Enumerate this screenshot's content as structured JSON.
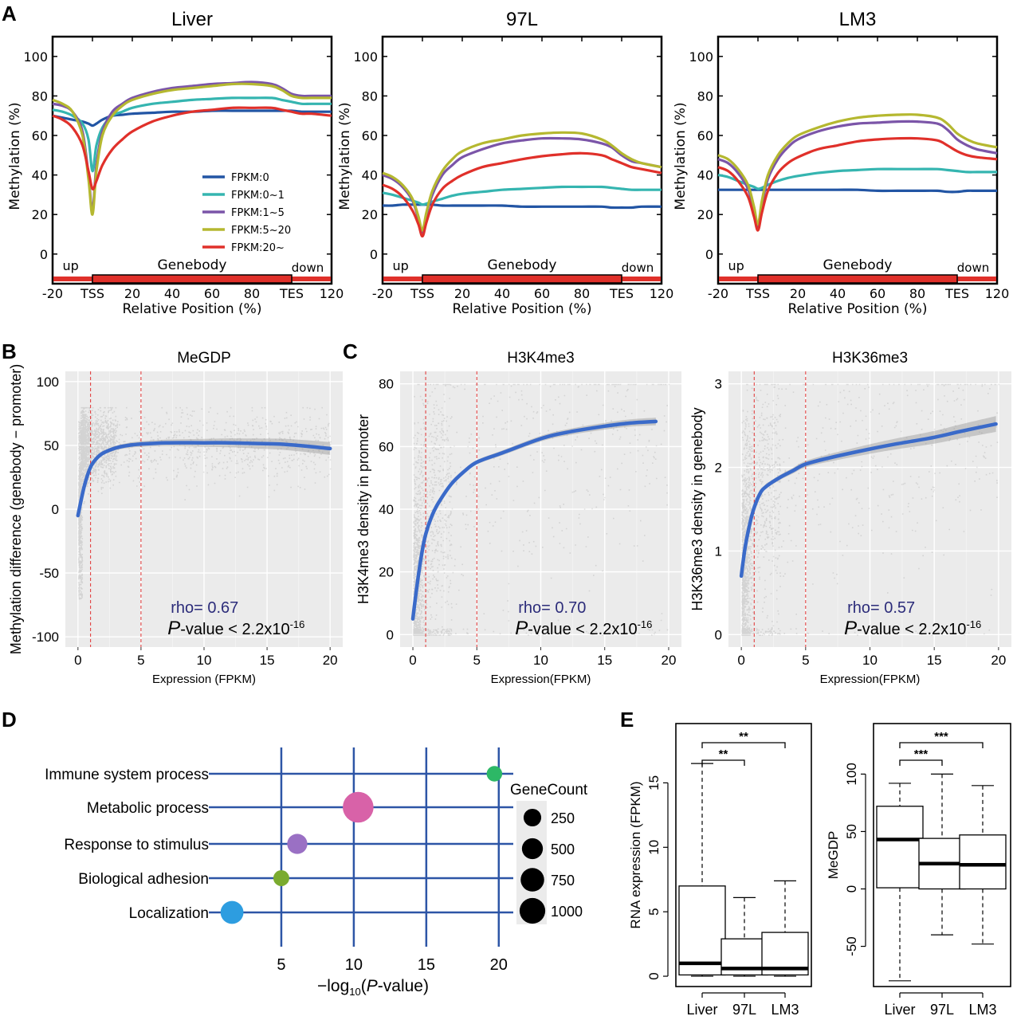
{
  "chart_data": [
    {
      "panel": "A",
      "type": "line",
      "x_ticks": [
        "-20",
        "TSS",
        "20",
        "40",
        "60",
        "80",
        "TES",
        "120"
      ],
      "xlabel": "Relative Position (%)",
      "ylabel": "Methylation (%)",
      "y_ticks": [
        "0",
        "20",
        "40",
        "60",
        "80",
        "100"
      ],
      "ylim": [
        -15,
        110
      ],
      "xlim": [
        -20,
        120
      ],
      "region_labels": {
        "up": "up",
        "genebody": "Genebody",
        "down": "down"
      },
      "legend": [
        "FPKM:0",
        "FPKM:0~1",
        "FPKM:1~5",
        "FPKM:5~20",
        "FPKM:20~"
      ],
      "series_colors": [
        "#2255a4",
        "#35b5b0",
        "#7b55a8",
        "#b5b830",
        "#e0302a"
      ],
      "x": [
        -20,
        -15,
        -10,
        -5,
        -2,
        0,
        2,
        5,
        10,
        15,
        20,
        30,
        40,
        50,
        60,
        70,
        80,
        90,
        95,
        100,
        105,
        110,
        120
      ],
      "panels": [
        {
          "title": "Liver",
          "series": [
            {
              "name": "FPKM:0",
              "values": [
                70,
                69,
                68,
                67,
                66,
                65,
                66,
                68,
                70,
                70.5,
                71,
                71.5,
                72,
                72,
                72.5,
                72.5,
                72.5,
                72.5,
                72.5,
                72.5,
                72,
                72,
                72
              ]
            },
            {
              "name": "FPKM:0~1",
              "values": [
                73,
                72,
                70,
                66,
                58,
                42,
                55,
                64,
                70,
                72,
                74,
                76,
                77,
                78,
                78.5,
                79,
                79,
                79,
                78,
                77,
                76,
                76,
                76
              ]
            },
            {
              "name": "FPKM:1~5",
              "values": [
                76,
                75,
                72,
                62,
                40,
                22,
                45,
                62,
                72,
                76,
                79,
                82,
                84,
                85,
                86,
                86.5,
                87,
                86,
                84,
                81,
                80,
                80,
                80
              ]
            },
            {
              "name": "FPKM:5~20",
              "values": [
                78,
                76,
                72,
                60,
                38,
                20,
                42,
                60,
                70,
                75,
                78,
                81,
                83,
                84,
                85,
                86,
                86,
                85,
                83,
                80,
                79,
                79,
                79
              ]
            },
            {
              "name": "FPKM:20~",
              "values": [
                70,
                68,
                64,
                55,
                42,
                33,
                37,
                45,
                53,
                58,
                62,
                67,
                70,
                72,
                73,
                74,
                74,
                74,
                73,
                72,
                71,
                71,
                70
              ]
            }
          ]
        },
        {
          "title": "97L",
          "series": [
            {
              "name": "FPKM:0",
              "values": [
                24.5,
                24.5,
                25,
                25,
                25,
                25,
                25,
                25,
                24.5,
                24.5,
                24.5,
                24.5,
                24.5,
                24,
                24,
                24,
                24,
                24,
                23.5,
                23.5,
                23.5,
                24,
                24
              ]
            },
            {
              "name": "FPKM:0~1",
              "values": [
                31,
                30,
                28.5,
                27,
                26,
                25,
                25.5,
                26.5,
                28,
                29.5,
                30.5,
                31.5,
                32.5,
                33,
                33.5,
                34,
                34,
                34,
                33.5,
                33,
                32.5,
                32.5,
                32.5
              ]
            },
            {
              "name": "FPKM:1~5",
              "values": [
                40,
                38,
                34,
                27,
                18,
                11,
                20,
                30,
                40,
                45,
                49,
                53,
                56,
                57.5,
                58.5,
                58.5,
                58,
                56,
                54,
                50,
                47,
                46,
                44
              ]
            },
            {
              "name": "FPKM:5~20",
              "values": [
                41,
                39,
                35,
                28,
                19,
                12,
                21,
                32,
                42,
                48,
                52,
                56,
                58,
                60,
                61,
                61.5,
                61,
                58,
                55,
                51,
                48,
                46,
                44
              ]
            },
            {
              "name": "FPKM:20~",
              "values": [
                35,
                33,
                29,
                22,
                15,
                9,
                16,
                25,
                33,
                37,
                40,
                44,
                46,
                48,
                49.5,
                50.5,
                51,
                50,
                48,
                46,
                44,
                43,
                41
              ]
            }
          ]
        },
        {
          "title": "LM3",
          "series": [
            {
              "name": "FPKM:0",
              "values": [
                32.5,
                32.5,
                32.5,
                32.5,
                32.5,
                32.5,
                32.5,
                32.5,
                32.5,
                32.5,
                32.5,
                32.5,
                32.5,
                32.5,
                32,
                32,
                32,
                32,
                31.5,
                31.5,
                32,
                32,
                32
              ]
            },
            {
              "name": "FPKM:0~1",
              "values": [
                40,
                39,
                37,
                35,
                34,
                33,
                33.5,
                35,
                37,
                38.5,
                39.5,
                41,
                42,
                42.5,
                43,
                43,
                43,
                43,
                42.5,
                42,
                41.5,
                41.5,
                41.5
              ]
            },
            {
              "name": "FPKM:1~5",
              "values": [
                48,
                46,
                41,
                33,
                22,
                14,
                25,
                38,
                48,
                54,
                58,
                62,
                64.5,
                66,
                66.5,
                67,
                67,
                66,
                63,
                58,
                55,
                53,
                51
              ]
            },
            {
              "name": "FPKM:5~20",
              "values": [
                50,
                48,
                43,
                35,
                24,
                15,
                27,
                40,
                50,
                56,
                60,
                64,
                67,
                69,
                70,
                70.5,
                70.5,
                69,
                66,
                61,
                58,
                56,
                54
              ]
            },
            {
              "name": "FPKM:20~",
              "values": [
                44,
                42,
                37,
                29,
                19,
                12,
                21,
                32,
                41,
                46,
                49,
                53,
                55,
                57,
                58,
                58.5,
                58.5,
                57.5,
                55,
                52,
                50,
                49,
                48
              ]
            }
          ]
        }
      ]
    },
    {
      "panel": "B",
      "type": "scatter",
      "title": "MeGDP",
      "xlabel": "Expression (FPKM)",
      "ylabel": "Methylation difference (genebody − promoter)",
      "xlim": [
        -1,
        21
      ],
      "ylim": [
        -108,
        108
      ],
      "x_ticks": [
        "0",
        "5",
        "10",
        "15",
        "20"
      ],
      "y_ticks": [
        "-100",
        "-50",
        "0",
        "50",
        "100"
      ],
      "vlines": [
        1,
        5
      ],
      "fit_x": [
        0,
        0.5,
        1,
        1.5,
        2,
        3,
        4,
        5,
        7,
        10,
        12,
        14,
        16,
        18,
        20
      ],
      "fit_y": [
        -5,
        18,
        33,
        40,
        44,
        48,
        50,
        51,
        52,
        52,
        52,
        51.5,
        51,
        49.5,
        47.5
      ],
      "rho_text": "rho= 0.67",
      "p_main": "-value < 2.2x10",
      "p_sup": "-16"
    },
    {
      "panel": "C",
      "type": "scatter",
      "title": "H3K4me3",
      "xlabel": "Expression(FPKM)",
      "ylabel": "H3K4me3 density in promoter",
      "xlim": [
        -1,
        21
      ],
      "ylim": [
        -4,
        84
      ],
      "x_ticks": [
        "0",
        "5",
        "10",
        "15",
        "20"
      ],
      "y_ticks": [
        "0",
        "20",
        "40",
        "60",
        "80"
      ],
      "vlines": [
        1,
        5
      ],
      "fit_x": [
        0,
        0.3,
        0.7,
        1,
        1.5,
        2,
        3,
        4,
        5,
        7,
        10,
        12,
        15,
        17,
        19
      ],
      "fit_y": [
        5,
        15,
        26,
        32,
        38,
        42,
        48,
        52,
        55,
        58,
        62.5,
        64.5,
        66.5,
        67.5,
        68
      ],
      "rho_text": "rho= 0.70",
      "p_main": "-value < 2.2x10",
      "p_sup": "-16"
    },
    {
      "panel": "C2",
      "type": "scatter",
      "title": "H3K36me3",
      "xlabel": "Expression(FPKM)",
      "ylabel": "H3K36me3 density in genebody",
      "xlim": [
        -1,
        21
      ],
      "ylim": [
        -0.15,
        3.15
      ],
      "x_ticks": [
        "0",
        "5",
        "10",
        "15",
        "20"
      ],
      "y_ticks": [
        "0",
        "1",
        "2",
        "3"
      ],
      "vlines": [
        1,
        5
      ],
      "fit_x": [
        0,
        0.3,
        0.7,
        1,
        1.5,
        2,
        3,
        4,
        5,
        7,
        10,
        12,
        15,
        17,
        19.8
      ],
      "fit_y": [
        0.7,
        1.05,
        1.35,
        1.52,
        1.7,
        1.78,
        1.88,
        1.96,
        2.04,
        2.12,
        2.22,
        2.28,
        2.36,
        2.43,
        2.52
      ],
      "rho_text": "rho= 0.57",
      "p_main": "-value < 2.2x10",
      "p_sup": "-16"
    },
    {
      "panel": "D",
      "type": "scatter",
      "xlabel_main": "−log",
      "xlabel_sub": "10",
      "xlabel_rest": "(",
      "xlabel_it": "P",
      "xlabel_end": "-value)",
      "x_ticks": [
        "5",
        "10",
        "15",
        "20"
      ],
      "xlim": [
        0,
        21
      ],
      "categories": [
        "Immune system process",
        "Metabolic process",
        "Response to stimulus",
        "Biological adhesion",
        "Localization"
      ],
      "values": [
        19.7,
        10.3,
        6.1,
        5.0,
        1.6
      ],
      "gene_counts": [
        80,
        1000,
        250,
        90,
        400
      ],
      "colors": [
        "#2db866",
        "#d862a8",
        "#9a70c4",
        "#7aab2f",
        "#2d9de0"
      ],
      "legend_title": "GeneCount",
      "legend_values": [
        "250",
        "500",
        "750",
        "1000"
      ]
    },
    {
      "panel": "E",
      "type": "box",
      "categories": [
        "Liver",
        "97L",
        "LM3"
      ],
      "plots": [
        {
          "ylabel": "RNA expression (FPKM)",
          "y_ticks": [
            "0",
            "5",
            "10",
            "15"
          ],
          "ylim": [
            -0.8,
            19.6
          ],
          "boxes": [
            {
              "min": 0,
              "q1": 0.1,
              "median": 1.0,
              "q3": 7.0,
              "max": 16.5
            },
            {
              "min": 0,
              "q1": 0.1,
              "median": 0.6,
              "q3": 2.9,
              "max": 6.1
            },
            {
              "min": 0,
              "q1": 0.1,
              "median": 0.6,
              "q3": 3.4,
              "max": 7.4
            }
          ],
          "significance": [
            {
              "from": "Liver",
              "to": "97L",
              "label": "**"
            },
            {
              "from": "Liver",
              "to": "LM3",
              "label": "**"
            }
          ]
        },
        {
          "ylabel": "MeGDP",
          "y_ticks": [
            "-50",
            "0",
            "50",
            "100"
          ],
          "ylim": [
            -85,
            144
          ],
          "boxes": [
            {
              "min": -80,
              "q1": 1,
              "median": 43,
              "q3": 72,
              "max": 92
            },
            {
              "min": -40,
              "q1": 0,
              "median": 22,
              "q3": 44,
              "max": 100
            },
            {
              "min": -48,
              "q1": 0,
              "median": 21,
              "q3": 47,
              "max": 90
            }
          ],
          "significance": [
            {
              "from": "Liver",
              "to": "97L",
              "label": "***"
            },
            {
              "from": "Liver",
              "to": "LM3",
              "label": "***"
            }
          ]
        }
      ]
    }
  ],
  "panel_labels": [
    "A",
    "B",
    "C",
    "D",
    "E"
  ]
}
